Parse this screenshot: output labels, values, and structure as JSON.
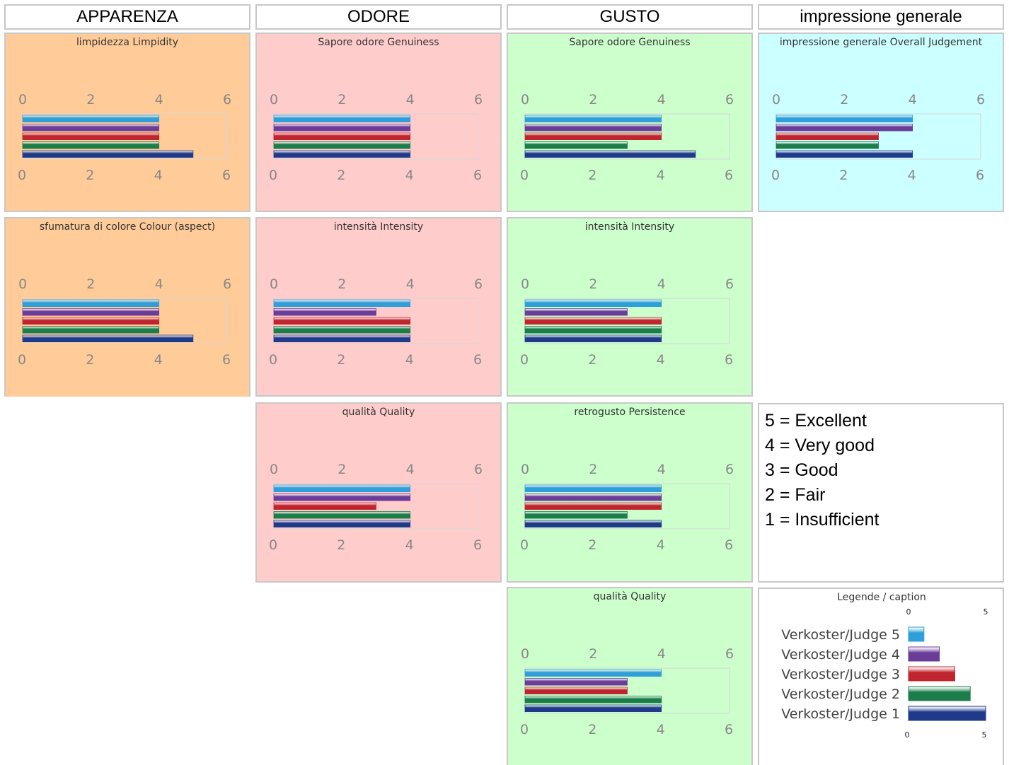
{
  "colors": {
    "appearance": "#ffcc99",
    "smell": "#ffcccc",
    "taste": "#ccffcc",
    "overall": "#ccffff",
    "judge5": "#2e9fd8",
    "judge4": "#6a3d9a",
    "judge3": "#c0252f",
    "judge2": "#1a7d4a",
    "judge1": "#1f3a8a"
  },
  "headers": [
    "APPARENZA",
    "ODORE",
    "GUSTO",
    "impressione generale"
  ],
  "scale_lines": [
    "5 = Excellent",
    "4 = Very good",
    "3 = Good",
    "2 = Fair",
    "1 = Insufficient"
  ],
  "legend": {
    "title": "Legende / caption",
    "labels": [
      "Verkoster/Judge 5",
      "Verkoster/Judge 4",
      "Verkoster/Judge 3",
      "Verkoster/Judge 2",
      "Verkoster/Judge 1"
    ],
    "values": [
      1,
      2,
      3,
      4,
      5
    ],
    "ticks": [
      0,
      5
    ]
  },
  "chart_data": [
    {
      "type": "bar",
      "title": "limpidezza Limpidity",
      "group": "appearance",
      "categories": [
        "Verkoster/Judge 5",
        "Verkoster/Judge 4",
        "Verkoster/Judge 3",
        "Verkoster/Judge 2",
        "Verkoster/Judge 1"
      ],
      "values": [
        4,
        4,
        4,
        4,
        5
      ],
      "xlim": [
        0,
        6
      ],
      "ticks": [
        0,
        2,
        4,
        6
      ]
    },
    {
      "type": "bar",
      "title": "sfumatura di colore Colour (aspect)",
      "group": "appearance",
      "categories": [
        "Verkoster/Judge 5",
        "Verkoster/Judge 4",
        "Verkoster/Judge 3",
        "Verkoster/Judge 2",
        "Verkoster/Judge 1"
      ],
      "values": [
        4,
        4,
        4,
        4,
        5
      ],
      "xlim": [
        0,
        6
      ],
      "ticks": [
        0,
        2,
        4,
        6
      ]
    },
    {
      "type": "bar",
      "title": "Sapore odore Genuiness",
      "group": "smell",
      "categories": [
        "Verkoster/Judge 5",
        "Verkoster/Judge 4",
        "Verkoster/Judge 3",
        "Verkoster/Judge 2",
        "Verkoster/Judge 1"
      ],
      "values": [
        4,
        4,
        4,
        4,
        4
      ],
      "xlim": [
        0,
        6
      ],
      "ticks": [
        0,
        2,
        4,
        6
      ]
    },
    {
      "type": "bar",
      "title": "intensità Intensity",
      "group": "smell",
      "categories": [
        "Verkoster/Judge 5",
        "Verkoster/Judge 4",
        "Verkoster/Judge 3",
        "Verkoster/Judge 2",
        "Verkoster/Judge 1"
      ],
      "values": [
        4,
        3,
        4,
        4,
        4
      ],
      "xlim": [
        0,
        6
      ],
      "ticks": [
        0,
        2,
        4,
        6
      ]
    },
    {
      "type": "bar",
      "title": "qualità Quality",
      "group": "smell",
      "categories": [
        "Verkoster/Judge 5",
        "Verkoster/Judge 4",
        "Verkoster/Judge 3",
        "Verkoster/Judge 2",
        "Verkoster/Judge 1"
      ],
      "values": [
        4,
        4,
        3,
        4,
        4
      ],
      "xlim": [
        0,
        6
      ],
      "ticks": [
        0,
        2,
        4,
        6
      ]
    },
    {
      "type": "bar",
      "title": "Sapore odore Genuiness",
      "group": "taste",
      "categories": [
        "Verkoster/Judge 5",
        "Verkoster/Judge 4",
        "Verkoster/Judge 3",
        "Verkoster/Judge 2",
        "Verkoster/Judge 1"
      ],
      "values": [
        4,
        4,
        4,
        3,
        5
      ],
      "xlim": [
        0,
        6
      ],
      "ticks": [
        0,
        2,
        4,
        6
      ]
    },
    {
      "type": "bar",
      "title": "intensità Intensity",
      "group": "taste",
      "categories": [
        "Verkoster/Judge 5",
        "Verkoster/Judge 4",
        "Verkoster/Judge 3",
        "Verkoster/Judge 2",
        "Verkoster/Judge 1"
      ],
      "values": [
        4,
        3,
        4,
        4,
        4
      ],
      "xlim": [
        0,
        6
      ],
      "ticks": [
        0,
        2,
        4,
        6
      ]
    },
    {
      "type": "bar",
      "title": "retrogusto Persistence",
      "group": "taste",
      "categories": [
        "Verkoster/Judge 5",
        "Verkoster/Judge 4",
        "Verkoster/Judge 3",
        "Verkoster/Judge 2",
        "Verkoster/Judge 1"
      ],
      "values": [
        4,
        4,
        4,
        3,
        4
      ],
      "xlim": [
        0,
        6
      ],
      "ticks": [
        0,
        2,
        4,
        6
      ]
    },
    {
      "type": "bar",
      "title": "qualità Quality",
      "group": "taste",
      "categories": [
        "Verkoster/Judge 5",
        "Verkoster/Judge 4",
        "Verkoster/Judge 3",
        "Verkoster/Judge 2",
        "Verkoster/Judge 1"
      ],
      "values": [
        4,
        3,
        3,
        4,
        4
      ],
      "xlim": [
        0,
        6
      ],
      "ticks": [
        0,
        2,
        4,
        6
      ]
    },
    {
      "type": "bar",
      "title": "impressione generale Overall Judgement",
      "group": "overall",
      "categories": [
        "Verkoster/Judge 5",
        "Verkoster/Judge 4",
        "Verkoster/Judge 3",
        "Verkoster/Judge 2",
        "Verkoster/Judge 1"
      ],
      "values": [
        4,
        4,
        3,
        3,
        4
      ],
      "xlim": [
        0,
        6
      ],
      "ticks": [
        0,
        2,
        4,
        6
      ]
    }
  ]
}
